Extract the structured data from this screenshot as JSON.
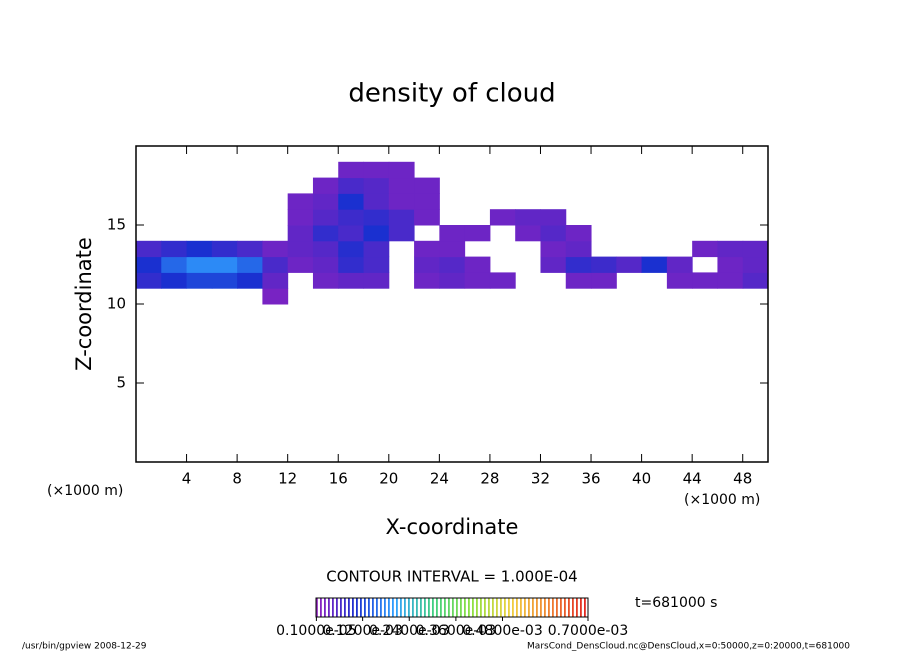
{
  "chart_data": {
    "type": "contour",
    "title": "density of cloud",
    "xlabel": "X-coordinate",
    "ylabel": "Z-coordinate",
    "xunit": "(×1000 m)",
    "yunit": "(×1000 m)",
    "xlim": [
      0,
      50
    ],
    "ylim": [
      0,
      20
    ],
    "xticks": [
      4,
      8,
      12,
      16,
      20,
      24,
      28,
      32,
      36,
      40,
      44,
      48
    ],
    "yticks": [
      5,
      10,
      15
    ],
    "cell_width": 2,
    "cell_height": 1,
    "x": [
      1,
      3,
      5,
      7,
      9,
      11,
      13,
      15,
      17,
      19,
      21,
      23,
      25,
      27,
      29,
      31,
      33,
      35,
      37,
      39,
      41,
      43,
      45,
      47,
      49
    ],
    "z": [
      10.5,
      11.5,
      12.5,
      13.5,
      14.5,
      15.5,
      16.5,
      17.5,
      18.5
    ],
    "values": [
      [
        null,
        null,
        null,
        null,
        null,
        2e-05,
        null,
        null,
        null,
        null,
        null,
        null,
        null,
        null,
        null,
        null,
        null,
        null,
        null,
        null,
        null,
        null,
        null,
        null,
        null
      ],
      [
        8e-05,
        0.0001,
        0.00012,
        0.00012,
        0.0001,
        4e-05,
        null,
        3e-05,
        4e-05,
        4e-05,
        null,
        3e-05,
        4e-05,
        3e-05,
        3e-05,
        null,
        null,
        3e-05,
        3e-05,
        null,
        null,
        3e-05,
        3e-05,
        3e-05,
        5e-05
      ],
      [
        0.0001,
        0.00015,
        0.00018,
        0.00018,
        0.00015,
        6e-05,
        3e-05,
        4e-05,
        8e-05,
        6e-05,
        null,
        4e-05,
        5e-05,
        3e-05,
        null,
        null,
        4e-05,
        8e-05,
        7e-05,
        5e-05,
        0.0001,
        4e-05,
        null,
        3e-05,
        4e-05
      ],
      [
        6e-05,
        8e-05,
        0.0001,
        8e-05,
        6e-05,
        3e-05,
        4e-05,
        5e-05,
        9e-05,
        6e-05,
        null,
        3e-05,
        3e-05,
        null,
        null,
        null,
        3e-05,
        4e-05,
        null,
        null,
        null,
        null,
        3e-05,
        4e-05,
        4e-05
      ],
      [
        null,
        null,
        null,
        null,
        null,
        null,
        4e-05,
        8e-05,
        6e-05,
        0.0001,
        6e-05,
        null,
        3e-05,
        3e-05,
        null,
        3e-05,
        5e-05,
        3e-05,
        null,
        null,
        null,
        null,
        null,
        null,
        null
      ],
      [
        null,
        null,
        null,
        null,
        null,
        null,
        3e-05,
        5e-05,
        7e-05,
        8e-05,
        6e-05,
        3e-05,
        null,
        null,
        3e-05,
        4e-05,
        4e-05,
        null,
        null,
        null,
        null,
        null,
        null,
        null,
        null
      ],
      [
        null,
        null,
        null,
        null,
        null,
        null,
        3e-05,
        4e-05,
        0.0001,
        5e-05,
        3e-05,
        3e-05,
        null,
        null,
        null,
        null,
        null,
        null,
        null,
        null,
        null,
        null,
        null,
        null,
        null
      ],
      [
        null,
        null,
        null,
        null,
        null,
        null,
        null,
        3e-05,
        6e-05,
        5e-05,
        3e-05,
        3e-05,
        null,
        null,
        null,
        null,
        null,
        null,
        null,
        null,
        null,
        null,
        null,
        null,
        null
      ],
      [
        null,
        null,
        null,
        null,
        null,
        null,
        null,
        null,
        3e-05,
        3e-05,
        3e-05,
        null,
        null,
        null,
        null,
        null,
        null,
        null,
        null,
        null,
        null,
        null,
        null,
        null,
        null
      ]
    ],
    "clim": [
      0,
      0.0007
    ],
    "colormap": [
      "#9020c0",
      "#1a30d0",
      "#30a0ff",
      "#40d080",
      "#90e040",
      "#f0d040",
      "#f08030",
      "#e02020"
    ],
    "contour_interval": "CONTOUR INTERVAL = 1.000E-04",
    "colorbar_ticks": [
      {
        "value": 1e-06,
        "label": "0.1000e-05"
      },
      {
        "value": 0.00012,
        "label": "0.1200e-03"
      },
      {
        "value": 0.00024,
        "label": "0.2400e-03"
      },
      {
        "value": 0.00036,
        "label": "0.3600e-03"
      },
      {
        "value": 0.00048,
        "label": "0.4800e-03"
      },
      {
        "value": 0.0007,
        "label": "0.7000e-03"
      }
    ],
    "time_label": "t=681000 s",
    "footer_left": "/usr/bin/gpview  2008-12-29",
    "footer_right": "MarsCond_DensCloud.nc@DensCloud,x=0:50000,z=0:20000,t=681000"
  }
}
